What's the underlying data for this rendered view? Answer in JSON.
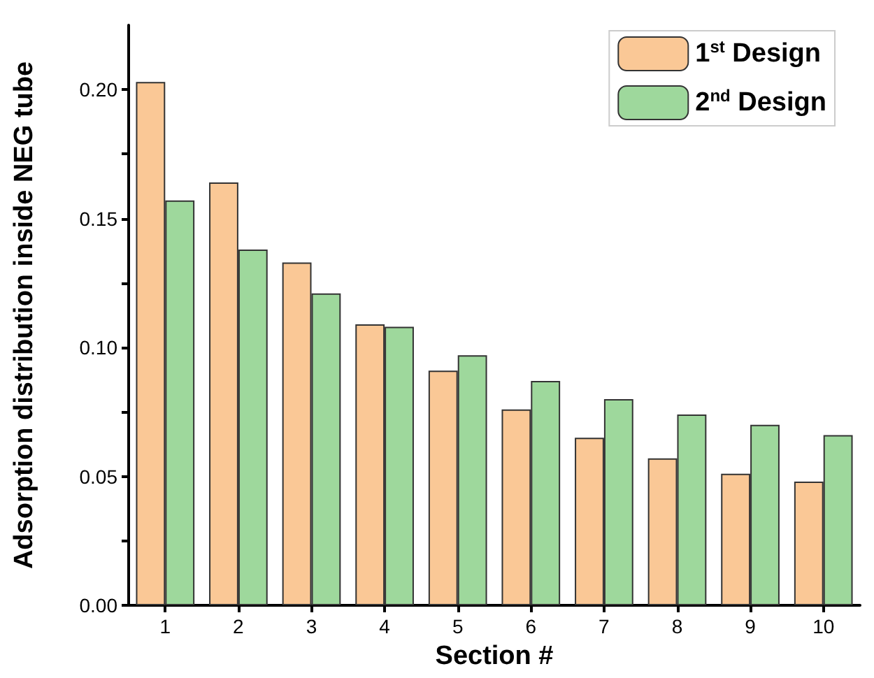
{
  "chart_data": {
    "type": "bar",
    "xlabel": "Section #",
    "ylabel": "Adsorption distribution inside NEG tube",
    "categories": [
      "1",
      "2",
      "3",
      "4",
      "5",
      "6",
      "7",
      "8",
      "9",
      "10"
    ],
    "series": [
      {
        "name": "1$^{st}$ Design",
        "color": "#fac896",
        "values": [
          0.203,
          0.164,
          0.133,
          0.109,
          0.091,
          0.076,
          0.065,
          0.057,
          0.051,
          0.048
        ]
      },
      {
        "name": "2$^{nd}$ Design",
        "color": "#9ed89c",
        "values": [
          0.157,
          0.138,
          0.121,
          0.108,
          0.097,
          0.087,
          0.08,
          0.074,
          0.07,
          0.066
        ]
      }
    ],
    "ylim": [
      0,
      0.225
    ],
    "yticks": [
      {
        "value": 0,
        "label": "0.00"
      },
      {
        "value": 0.025,
        "label": null
      },
      {
        "value": 0.05,
        "label": "0.05"
      },
      {
        "value": 0.075,
        "label": null
      },
      {
        "value": 0.1,
        "label": "0.10"
      },
      {
        "value": 0.125,
        "label": null
      },
      {
        "value": 0.15,
        "label": "0.15"
      },
      {
        "value": 0.175,
        "label": null
      },
      {
        "value": 0.2,
        "label": "0.20"
      }
    ],
    "grid": false,
    "legend": "top right"
  }
}
